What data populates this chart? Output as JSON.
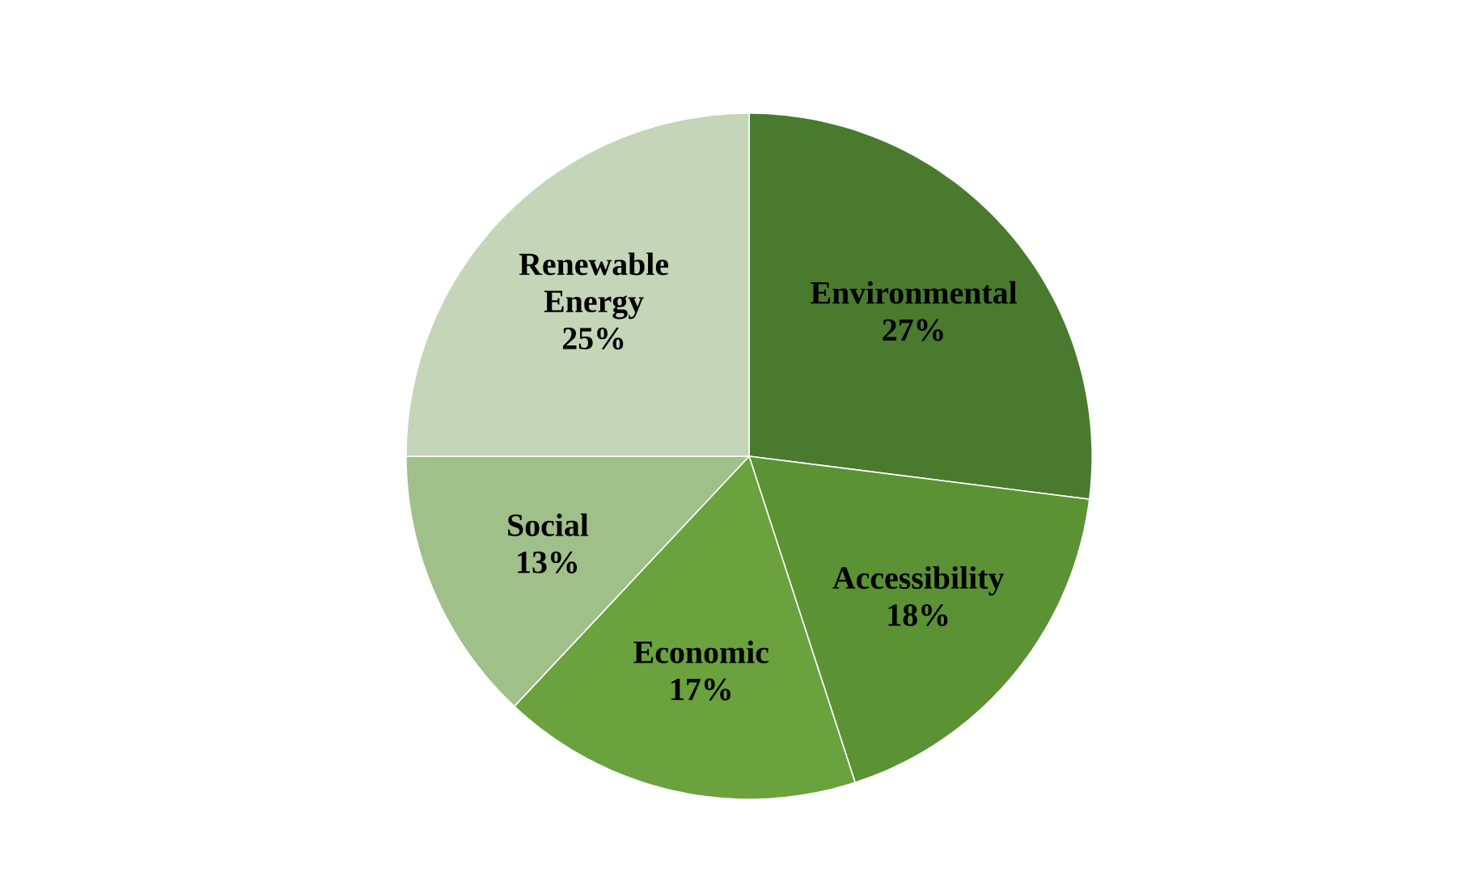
{
  "chart_data": {
    "type": "pie",
    "categories": [
      "Environmental",
      "Accessibility",
      "Economic",
      "Social",
      "Renewable Energy"
    ],
    "values": [
      27,
      18,
      17,
      13,
      25
    ],
    "value_labels": [
      "27%",
      "18%",
      "17%",
      "13%",
      "25%"
    ],
    "colors": [
      "#4a7a2e",
      "#5a9234",
      "#6aa23e",
      "#a0c08a",
      "#c4d5b8"
    ]
  }
}
